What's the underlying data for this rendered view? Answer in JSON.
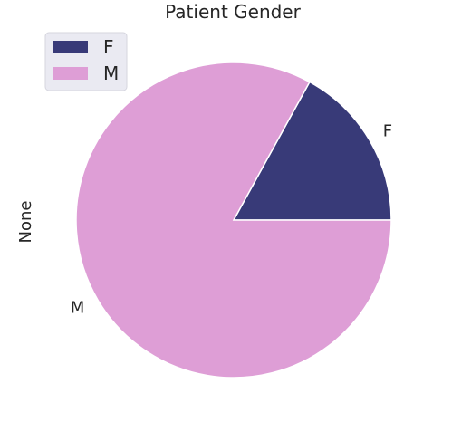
{
  "chart_data": {
    "type": "pie",
    "title": "Patient Gender",
    "ylabel": "None",
    "categories": [
      "F",
      "M"
    ],
    "values": [
      17,
      83
    ],
    "colors": [
      "#383a78",
      "#de9ed6"
    ],
    "start_angle_deg": 0,
    "direction": "counterclockwise",
    "legend": {
      "placement": "top-left",
      "entries": [
        "F",
        "M"
      ]
    }
  }
}
